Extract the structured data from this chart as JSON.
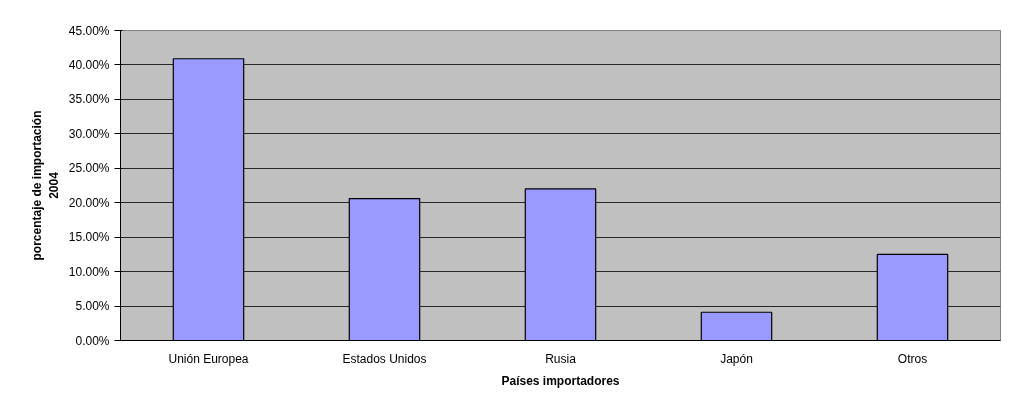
{
  "chart_data": {
    "type": "bar",
    "xlabel": "Países importadores",
    "ylabel": "porcentaje de importación\n2004",
    "categories": [
      "Unión Europea",
      "Estados Unidos",
      "Rusia",
      "Japón",
      "Otros"
    ],
    "values": [
      40.9,
      20.6,
      22.0,
      4.1,
      12.5
    ],
    "color": "#9999ff",
    "ylim": [
      0,
      45
    ],
    "yticks": [
      {
        "value": 0,
        "label": "0.00%"
      },
      {
        "value": 5,
        "label": "5.00%"
      },
      {
        "value": 10,
        "label": "10.00%"
      },
      {
        "value": 15,
        "label": "15.00%"
      },
      {
        "value": 20,
        "label": "20.00%"
      },
      {
        "value": 25,
        "label": "25.00%"
      },
      {
        "value": 30,
        "label": "30.00%"
      },
      {
        "value": 35,
        "label": "35.00%"
      },
      {
        "value": 40,
        "label": "40.00%"
      },
      {
        "value": 45,
        "label": "45.00%"
      }
    ],
    "grid": "y"
  }
}
